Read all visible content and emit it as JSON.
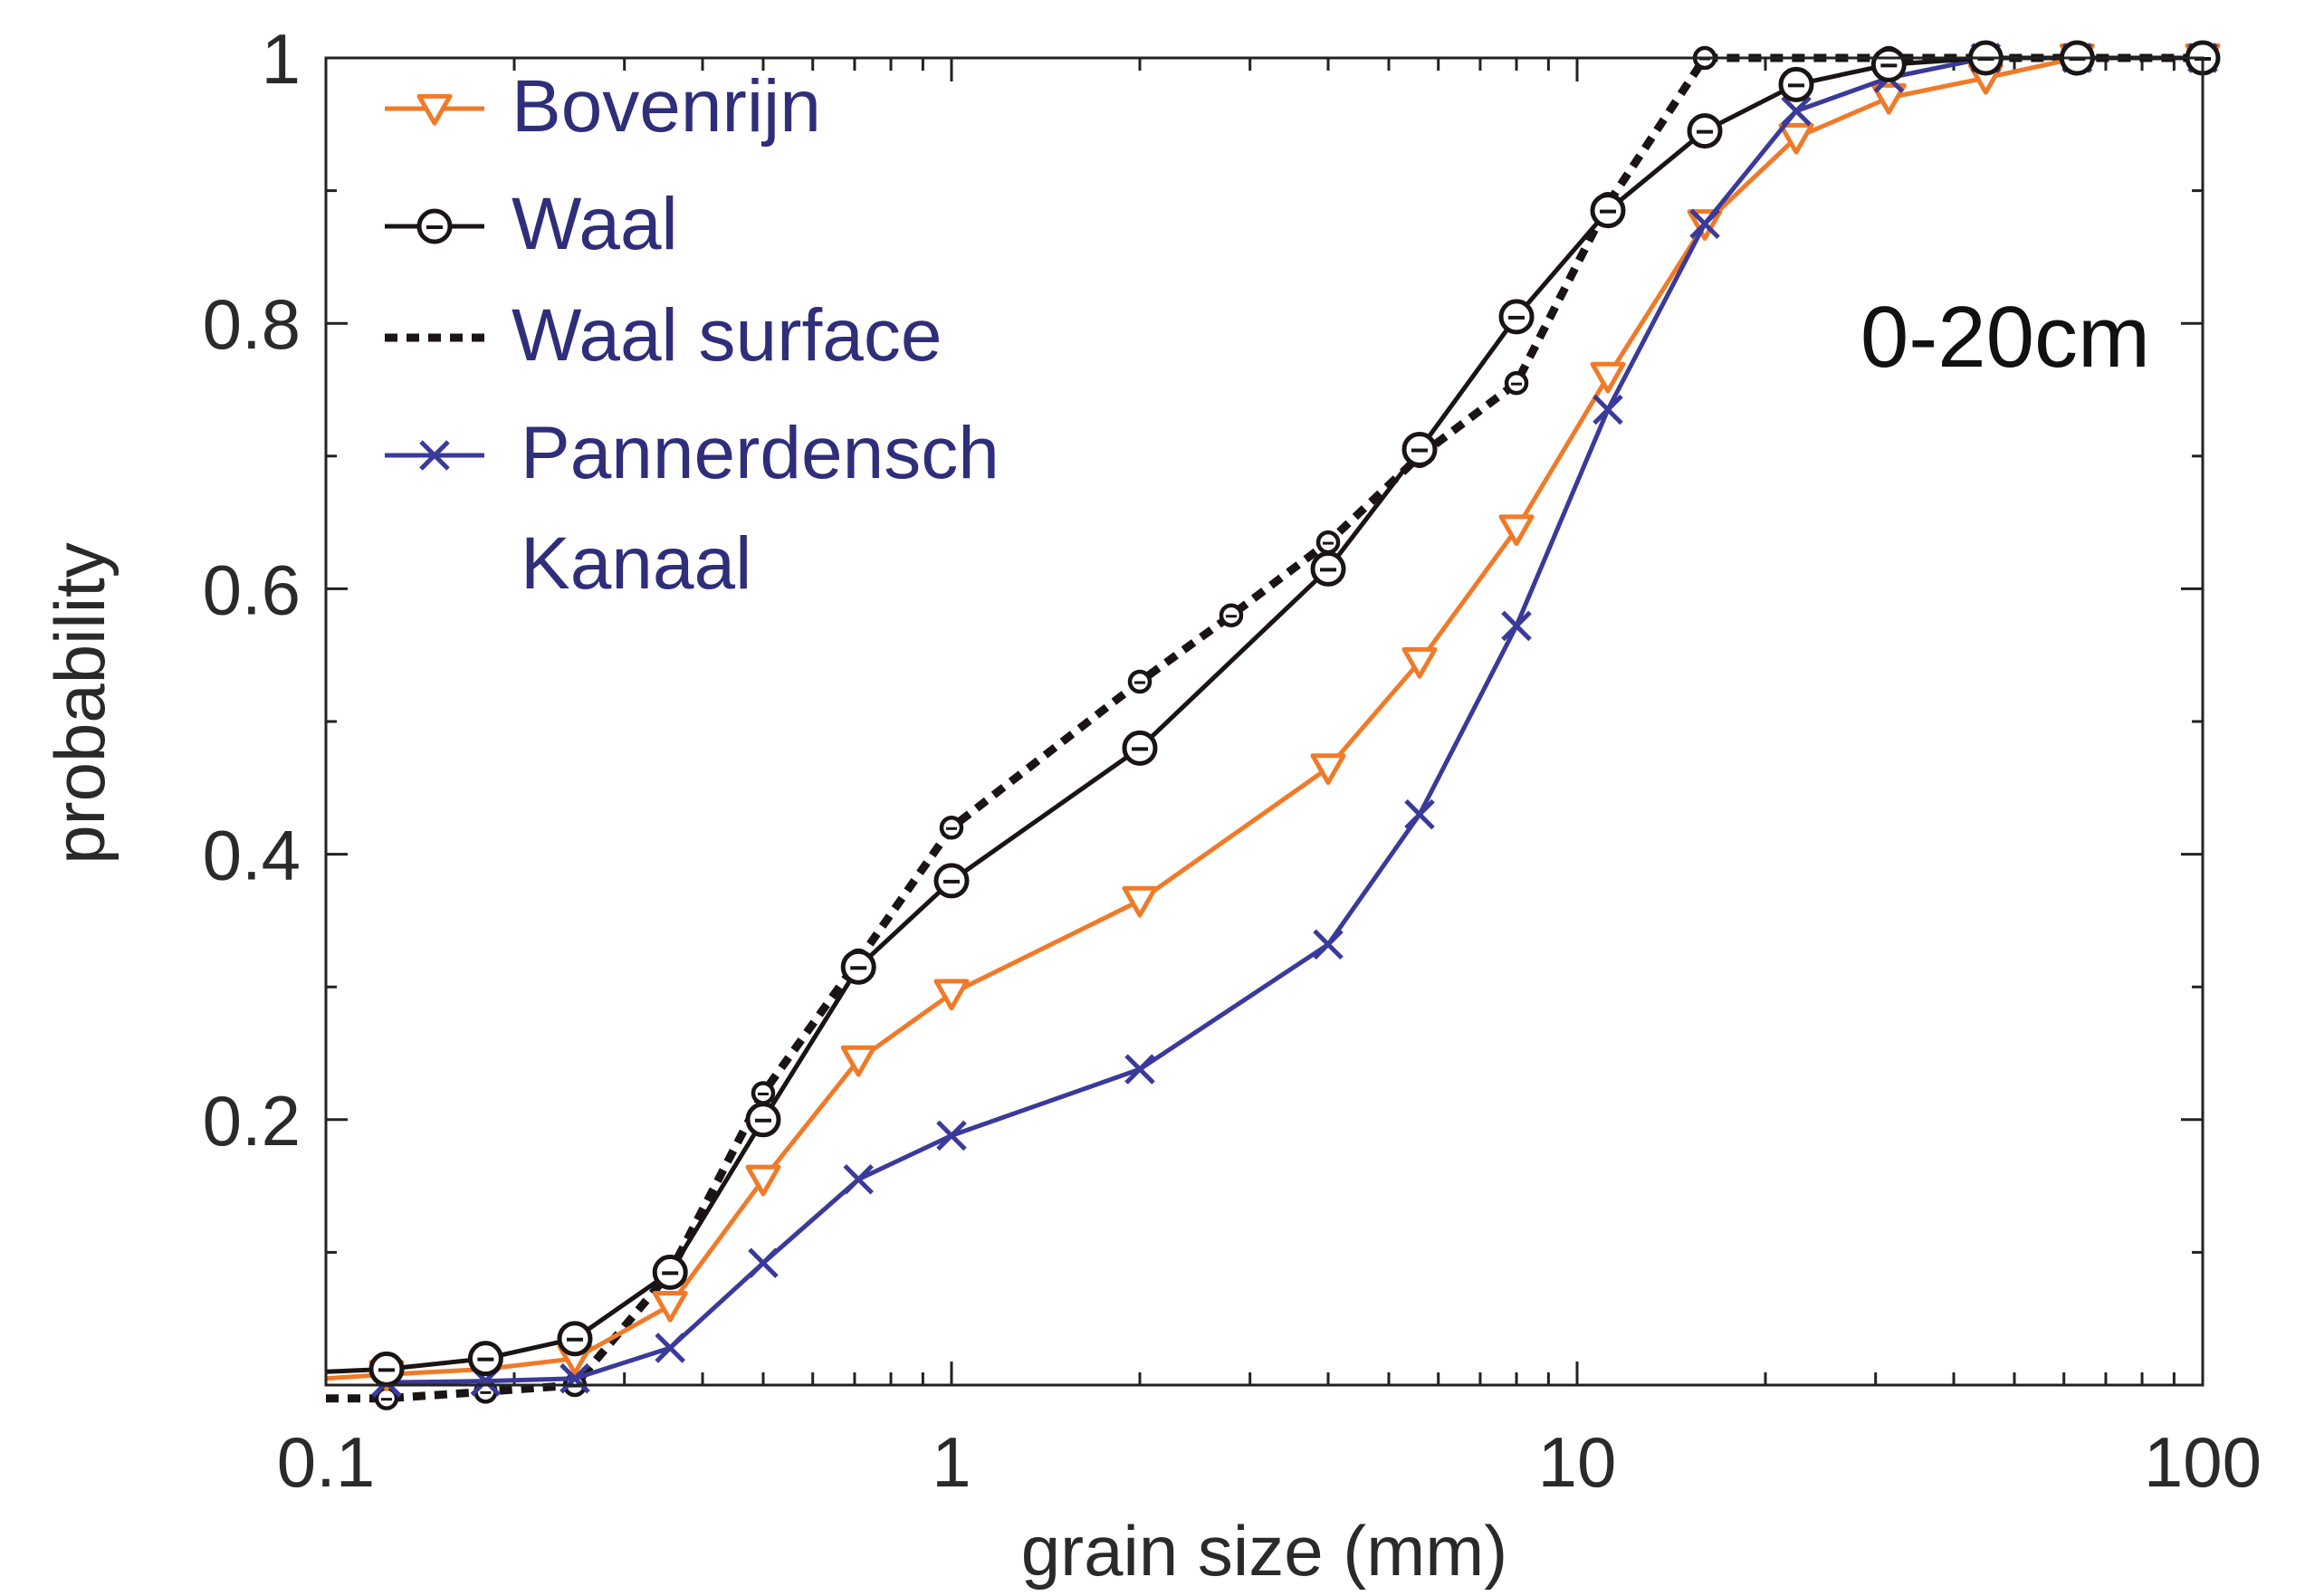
{
  "chart_data": {
    "type": "line",
    "xscale": "log",
    "xlim": [
      0.1,
      100
    ],
    "ylim": [
      0,
      1
    ],
    "xlabel": "grain size (mm)",
    "ylabel": "probability",
    "xticks": [
      {
        "value": 0.1,
        "label": "0.1"
      },
      {
        "value": 1,
        "label": "1"
      },
      {
        "value": 10,
        "label": "10"
      },
      {
        "value": 100,
        "label": "100"
      }
    ],
    "yticks": [
      {
        "value": 0.2,
        "label": "0.2"
      },
      {
        "value": 0.4,
        "label": "0.4"
      },
      {
        "value": 0.6,
        "label": "0.6"
      },
      {
        "value": 0.8,
        "label": "0.8"
      },
      {
        "value": 1,
        "label": "1"
      }
    ],
    "annotation": "0-20cm",
    "legend_position": "top-left",
    "grid": false,
    "series": [
      {
        "name": "Bovenrijn",
        "color": "#f07a28",
        "marker": "triangle-down",
        "dash": "solid",
        "x": [
          0.1,
          0.125,
          0.18,
          0.25,
          0.355,
          0.5,
          0.71,
          1,
          2,
          4,
          5.6,
          8,
          11.2,
          16,
          22.4,
          31.5,
          45,
          63,
          100
        ],
        "y": [
          0.005,
          0.008,
          0.012,
          0.02,
          0.06,
          0.155,
          0.245,
          0.295,
          0.365,
          0.465,
          0.545,
          0.645,
          0.76,
          0.875,
          0.94,
          0.97,
          0.985,
          1.0,
          1.0
        ]
      },
      {
        "name": "Waal",
        "color": "#1a1414",
        "marker": "circle",
        "dash": "solid",
        "x": [
          0.1,
          0.125,
          0.18,
          0.25,
          0.355,
          0.5,
          0.71,
          1,
          2,
          4,
          5.6,
          8,
          11.2,
          16,
          22.4,
          31.5,
          45,
          63,
          100
        ],
        "y": [
          0.01,
          0.012,
          0.02,
          0.035,
          0.085,
          0.2,
          0.315,
          0.38,
          0.48,
          0.615,
          0.705,
          0.805,
          0.885,
          0.945,
          0.98,
          0.995,
          1.0,
          1.0,
          1.0
        ]
      },
      {
        "name": "Waal surface",
        "color": "#1a1414",
        "marker": "small-circle",
        "dash": "dotted",
        "x": [
          0.1,
          0.125,
          0.18,
          0.25,
          0.355,
          0.5,
          0.71,
          1,
          2,
          2.8,
          4,
          5.6,
          8,
          11.2,
          16,
          31.5,
          100
        ],
        "y": [
          -0.01,
          -0.01,
          -0.005,
          0.0,
          0.085,
          0.22,
          0.32,
          0.42,
          0.53,
          0.58,
          0.635,
          0.7,
          0.755,
          0.89,
          1.0,
          1.0,
          1.0
        ]
      },
      {
        "name": "Pannerdensch Kanaal",
        "color": "#3a3a9a",
        "marker": "x",
        "dash": "solid",
        "x": [
          0.125,
          0.18,
          0.25,
          0.355,
          0.5,
          0.71,
          1,
          2,
          4,
          5.6,
          8,
          11.2,
          16,
          22.4,
          31.5,
          45,
          63,
          100
        ],
        "y": [
          0.002,
          0.003,
          0.005,
          0.028,
          0.092,
          0.155,
          0.188,
          0.238,
          0.332,
          0.43,
          0.572,
          0.735,
          0.875,
          0.96,
          0.985,
          1.0,
          1.0,
          1.0
        ]
      }
    ],
    "legend": [
      {
        "label": "Bovenrijn"
      },
      {
        "label": "Waal"
      },
      {
        "label": "Waal surface"
      },
      {
        "label": "Pannerdensch",
        "label2": "Kanaal"
      }
    ]
  }
}
